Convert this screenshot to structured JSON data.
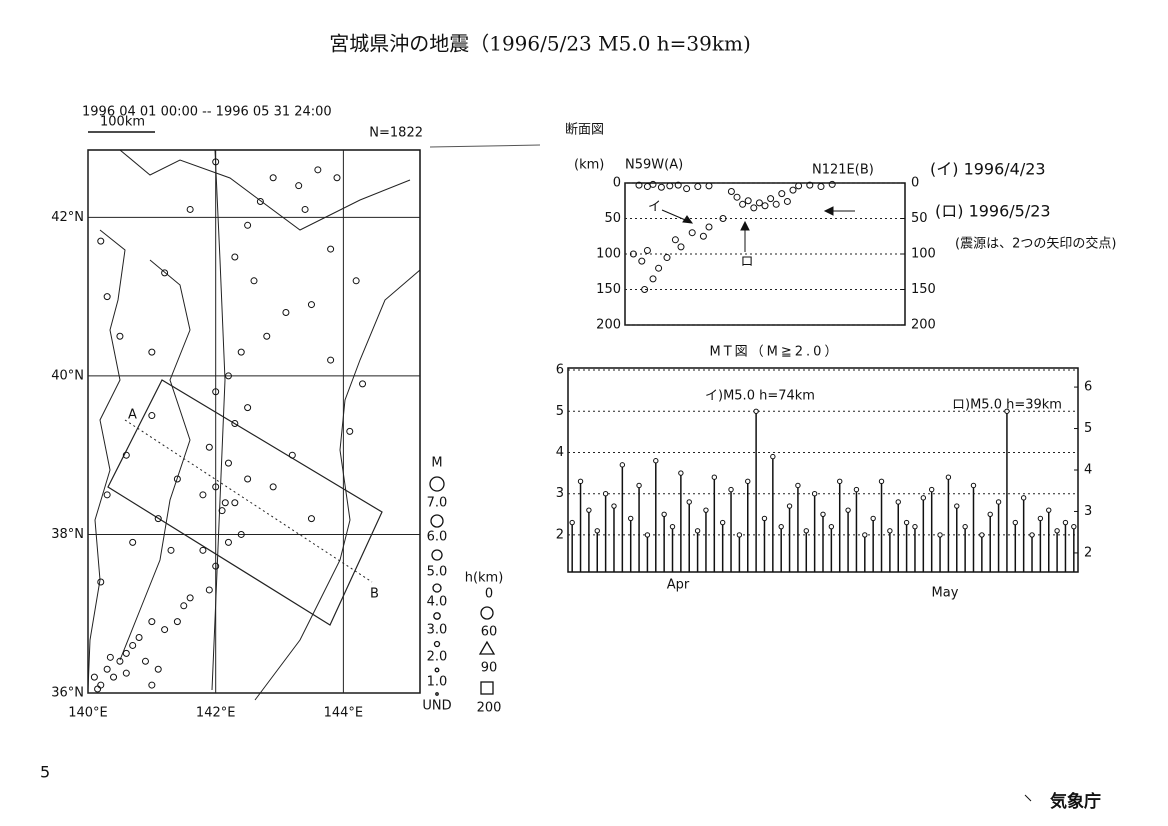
{
  "title": "宮城県沖の地震（1996/5/23  M5.0 h=39km)",
  "footer": {
    "page": "5",
    "agency": "気象庁"
  },
  "chart_data": [
    {
      "type": "scatter",
      "period": "1996 04 01 00:00 -- 1996 05 31 24:00",
      "scale_label": "100km",
      "count_label": "N=1822",
      "section_labels": [
        "A",
        "B"
      ],
      "xlim": [
        140,
        145.2
      ],
      "ylim": [
        36,
        42.85
      ],
      "xticks": [
        {
          "value": 140,
          "label": "140°E"
        },
        {
          "value": 142,
          "label": "142°E"
        },
        {
          "value": 144,
          "label": "144°E"
        }
      ],
      "yticks": [
        {
          "value": 36,
          "label": "36°N"
        },
        {
          "value": 38,
          "label": "38°N"
        },
        {
          "value": 40,
          "label": "40°N"
        },
        {
          "value": 42,
          "label": "42°N"
        }
      ],
      "grid": true,
      "points": [
        [
          140.1,
          36.2
        ],
        [
          140.2,
          36.1
        ],
        [
          140.3,
          36.3
        ],
        [
          140.5,
          36.4
        ],
        [
          140.6,
          36.5
        ],
        [
          140.7,
          36.6
        ],
        [
          140.4,
          36.2
        ],
        [
          140.8,
          36.7
        ],
        [
          141.0,
          36.9
        ],
        [
          140.9,
          36.4
        ],
        [
          140.15,
          36.05
        ],
        [
          140.35,
          36.45
        ],
        [
          140.6,
          36.25
        ],
        [
          141.1,
          36.3
        ],
        [
          141.2,
          36.8
        ],
        [
          141.5,
          37.1
        ],
        [
          141.4,
          36.9
        ],
        [
          141.6,
          37.2
        ],
        [
          141.0,
          36.1
        ],
        [
          141.9,
          37.3
        ],
        [
          142.0,
          37.6
        ],
        [
          141.8,
          37.8
        ],
        [
          142.2,
          37.9
        ],
        [
          142.4,
          38.0
        ],
        [
          142.1,
          38.3
        ],
        [
          142.3,
          38.4
        ],
        [
          142.0,
          38.6
        ],
        [
          141.8,
          38.5
        ],
        [
          142.5,
          38.7
        ],
        [
          142.2,
          38.9
        ],
        [
          141.9,
          39.1
        ],
        [
          142.3,
          39.4
        ],
        [
          142.5,
          39.6
        ],
        [
          142.0,
          39.8
        ],
        [
          142.2,
          40.0
        ],
        [
          142.4,
          40.3
        ],
        [
          142.8,
          40.5
        ],
        [
          143.1,
          40.8
        ],
        [
          142.6,
          41.2
        ],
        [
          142.3,
          41.5
        ],
        [
          142.5,
          41.9
        ],
        [
          142.7,
          42.2
        ],
        [
          142.9,
          42.5
        ],
        [
          143.3,
          42.4
        ],
        [
          143.6,
          42.6
        ],
        [
          143.9,
          42.5
        ],
        [
          143.4,
          42.1
        ],
        [
          143.8,
          41.6
        ],
        [
          144.2,
          41.2
        ],
        [
          143.5,
          40.9
        ],
        [
          143.8,
          40.2
        ],
        [
          144.3,
          39.9
        ],
        [
          144.1,
          39.3
        ],
        [
          143.2,
          39.0
        ],
        [
          142.9,
          38.6
        ],
        [
          143.5,
          38.2
        ],
        [
          141.3,
          37.8
        ],
        [
          141.1,
          38.2
        ],
        [
          141.4,
          38.7
        ],
        [
          141.0,
          39.5
        ],
        [
          140.6,
          39.0
        ],
        [
          140.3,
          38.5
        ],
        [
          140.7,
          37.9
        ],
        [
          140.2,
          37.4
        ],
        [
          140.5,
          40.5
        ],
        [
          140.3,
          41.0
        ],
        [
          141.2,
          41.3
        ],
        [
          141.0,
          40.3
        ],
        [
          140.2,
          41.7
        ],
        [
          141.6,
          42.1
        ],
        [
          142.0,
          42.7
        ],
        [
          142.15,
          38.4
        ]
      ],
      "legend": {
        "magnitude_title": "M",
        "magnitudes": [
          "7.0",
          "6.0",
          "5.0",
          "4.0",
          "3.0",
          "2.0",
          "1.0",
          "UND"
        ],
        "depth_title": "h(km)",
        "depths": [
          0,
          60,
          90,
          200
        ]
      }
    },
    {
      "type": "scatter",
      "title": "断面図",
      "unit_label": "(km)",
      "left_label": "N59W(A)",
      "right_label": "N121E(B)",
      "xlim": [
        0,
        100
      ],
      "ylim": [
        200,
        0
      ],
      "yticks": [
        0,
        50,
        100,
        150,
        200
      ],
      "y2lim": [
        200,
        0
      ],
      "y2ticks": [
        0,
        50,
        100,
        150,
        200
      ],
      "grid": true,
      "points": [
        [
          5,
          3
        ],
        [
          8,
          5
        ],
        [
          10,
          2
        ],
        [
          13,
          6
        ],
        [
          16,
          4
        ],
        [
          19,
          3
        ],
        [
          22,
          8
        ],
        [
          26,
          5
        ],
        [
          30,
          4
        ],
        [
          38,
          12
        ],
        [
          40,
          20
        ],
        [
          42,
          30
        ],
        [
          44,
          25
        ],
        [
          46,
          35
        ],
        [
          48,
          28
        ],
        [
          50,
          32
        ],
        [
          52,
          22
        ],
        [
          54,
          30
        ],
        [
          56,
          15
        ],
        [
          58,
          26
        ],
        [
          60,
          10
        ],
        [
          62,
          4
        ],
        [
          66,
          3
        ],
        [
          70,
          5
        ],
        [
          74,
          2
        ],
        [
          3,
          100
        ],
        [
          6,
          110
        ],
        [
          8,
          95
        ],
        [
          12,
          120
        ],
        [
          15,
          105
        ],
        [
          20,
          90
        ],
        [
          24,
          70
        ],
        [
          28,
          75
        ],
        [
          18,
          80
        ],
        [
          30,
          62
        ],
        [
          35,
          50
        ],
        [
          10,
          135
        ],
        [
          7,
          150
        ]
      ],
      "arrow_labels": [
        "イ",
        "ロ"
      ],
      "annotations": [
        "(イ) 1996/4/23",
        "(ロ) 1996/5/23",
        "(震源は、2つの矢印の交点)"
      ]
    },
    {
      "type": "stem",
      "title": "MT図（M≧2.0）",
      "categories": [
        "Apr",
        "May"
      ],
      "xlim": [
        0.5,
        61.5
      ],
      "x": [
        1,
        2,
        3,
        4,
        5,
        6,
        7,
        8,
        9,
        10,
        11,
        12,
        13,
        14,
        15,
        16,
        17,
        18,
        19,
        20,
        21,
        22,
        23,
        24,
        25,
        26,
        27,
        28,
        29,
        30,
        31,
        32,
        33,
        34,
        35,
        36,
        37,
        38,
        39,
        40,
        41,
        42,
        43,
        44,
        45,
        46,
        47,
        48,
        49,
        50,
        51,
        52,
        53,
        54,
        55,
        56,
        57,
        58,
        59,
        60,
        61
      ],
      "values": [
        2.3,
        3.3,
        2.6,
        2.1,
        3.0,
        2.7,
        3.7,
        2.4,
        3.2,
        2.0,
        3.8,
        2.5,
        2.2,
        3.5,
        2.8,
        2.1,
        2.6,
        3.4,
        2.3,
        3.1,
        2.0,
        3.3,
        5.0,
        2.4,
        3.9,
        2.2,
        2.7,
        3.2,
        2.1,
        3.0,
        2.5,
        2.2,
        3.3,
        2.6,
        3.1,
        2.0,
        2.4,
        3.3,
        2.1,
        2.8,
        2.3,
        2.2,
        2.9,
        3.1,
        2.0,
        3.4,
        2.7,
        2.2,
        3.2,
        2.0,
        2.5,
        2.8,
        5.0,
        2.3,
        2.9,
        2.0,
        2.4,
        2.6,
        2.1,
        2.3,
        2.2
      ],
      "ylim": [
        1.1,
        6.05
      ],
      "yticks": [
        2,
        3,
        4,
        5,
        6
      ],
      "y2lim": [
        1.54,
        6.46
      ],
      "y2ticks": [
        2,
        3,
        4,
        5,
        6
      ],
      "grid": true,
      "annotations": [
        "イ)M5.0 h=74km",
        "ロ)M5.0 h=39km"
      ]
    }
  ]
}
